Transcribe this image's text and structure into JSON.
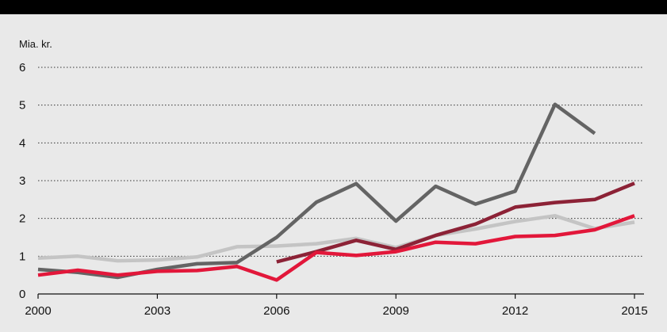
{
  "chart_data": {
    "type": "line",
    "title": "",
    "xlabel": "",
    "ylabel": "Mia. kr.",
    "x": [
      2000,
      2001,
      2002,
      2003,
      2004,
      2005,
      2006,
      2007,
      2008,
      2009,
      2010,
      2011,
      2012,
      2013,
      2014,
      2015
    ],
    "x_ticks": [
      "2000",
      "2003",
      "2006",
      "2009",
      "2012",
      "2015"
    ],
    "y_ticks": [
      "0",
      "1",
      "2",
      "3",
      "4",
      "5",
      "6"
    ],
    "xlim": [
      2000,
      2015
    ],
    "ylim": [
      0,
      6
    ],
    "grid": "horizontal-dotted",
    "series": [
      {
        "color": "#c4c4c4",
        "values": [
          0.95,
          1.0,
          0.88,
          0.9,
          0.98,
          1.25,
          1.27,
          1.33,
          1.47,
          1.23,
          1.55,
          1.72,
          1.92,
          2.07,
          1.73,
          1.9
        ]
      },
      {
        "color": "#8c2236",
        "values": [
          null,
          null,
          null,
          null,
          null,
          null,
          0.85,
          1.12,
          1.42,
          1.18,
          1.55,
          1.85,
          2.3,
          2.42,
          2.5,
          2.93
        ]
      },
      {
        "color": "#646464",
        "values": [
          0.65,
          0.57,
          0.44,
          0.65,
          0.8,
          0.83,
          1.5,
          2.43,
          2.92,
          1.93,
          2.85,
          2.38,
          2.72,
          5.02,
          4.25,
          null
        ]
      },
      {
        "color": "#e2173a",
        "values": [
          0.5,
          0.63,
          0.5,
          0.6,
          0.62,
          0.73,
          0.37,
          1.1,
          1.02,
          1.12,
          1.37,
          1.33,
          1.52,
          1.55,
          1.7,
          2.07
        ]
      }
    ]
  }
}
